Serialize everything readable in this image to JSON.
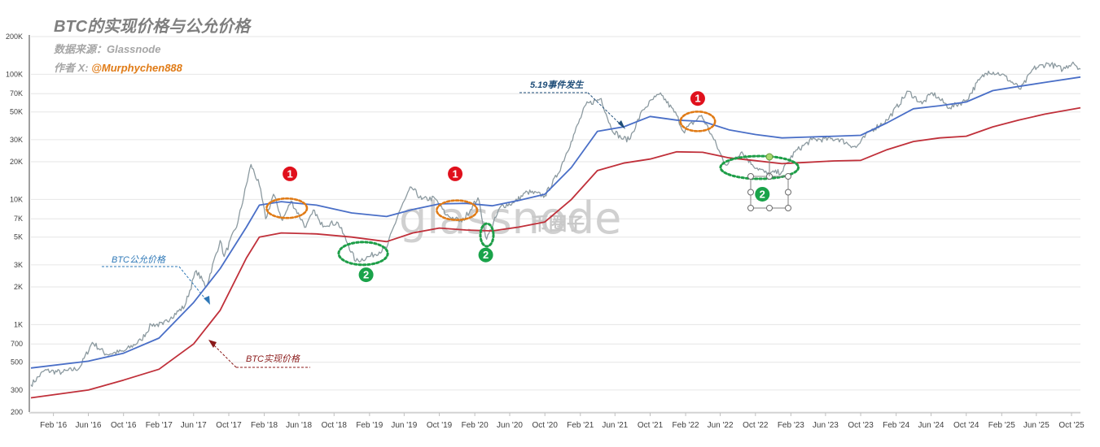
{
  "title": "BTC的实现价格与公允价格",
  "source_text": "数据来源：Glassnode",
  "author_label": "作者 X: ",
  "author_handle": "@Murphychen888",
  "watermark": "glassnode",
  "watermark2": "币圈子",
  "colors": {
    "price": "#8c9aa0",
    "fair": "#4a6fc7",
    "realized": "#c0303a",
    "orange_ring": "#e07b16",
    "green_ring": "#1e9e48",
    "marker_red": "#e0101c",
    "marker_green": "#1aa34a",
    "ann_blue": "#2e78b7",
    "ann_red": "#8b1a1a",
    "ann_navy": "#1f4e79"
  },
  "annotations": {
    "fair_label": "BTC公允价格",
    "realized_label": "BTC实现价格",
    "event_label": "5.19事件发生",
    "marker_1": "1",
    "marker_2": "2"
  },
  "chart_data": {
    "type": "line",
    "title": "BTC的实现价格与公允价格",
    "y_scale": "log",
    "ylim": [
      200,
      200000
    ],
    "y_ticks": [
      {
        "v": 200,
        "label": "200"
      },
      {
        "v": 300,
        "label": "300"
      },
      {
        "v": 500,
        "label": "500"
      },
      {
        "v": 700,
        "label": "700"
      },
      {
        "v": 1000,
        "label": "1K"
      },
      {
        "v": 2000,
        "label": "2K"
      },
      {
        "v": 3000,
        "label": "3K"
      },
      {
        "v": 5000,
        "label": "5K"
      },
      {
        "v": 7000,
        "label": "7K"
      },
      {
        "v": 10000,
        "label": "10K"
      },
      {
        "v": 20000,
        "label": "20K"
      },
      {
        "v": 30000,
        "label": "30K"
      },
      {
        "v": 50000,
        "label": "50K"
      },
      {
        "v": 70000,
        "label": "70K"
      },
      {
        "v": 100000,
        "label": "100K"
      },
      {
        "v": 200000,
        "label": "200K"
      }
    ],
    "xlim": [
      "2015-11-15",
      "2025-11-01"
    ],
    "x_ticks": [
      "Feb '16",
      "Jun '16",
      "Oct '16",
      "Feb '17",
      "Jun '17",
      "Oct '17",
      "Feb '18",
      "Jun '18",
      "Oct '18",
      "Feb '19",
      "Jun '19",
      "Oct '19",
      "Feb '20",
      "Jun '20",
      "Oct '20",
      "Feb '21",
      "Jun '21",
      "Oct '21",
      "Feb '22",
      "Jun '22",
      "Oct '22",
      "Feb '23",
      "Jun '23",
      "Oct '23",
      "Feb '24",
      "Jun '24",
      "Oct '24",
      "Feb '25",
      "Jun '25",
      "Oct '25"
    ],
    "grid": "horizontal",
    "series": [
      {
        "key": "price",
        "points": [
          [
            "2015-11-15",
            330
          ],
          [
            "2016-01-01",
            430
          ],
          [
            "2016-03-01",
            415
          ],
          [
            "2016-05-01",
            450
          ],
          [
            "2016-06-15",
            720
          ],
          [
            "2016-08-01",
            580
          ],
          [
            "2016-10-01",
            610
          ],
          [
            "2016-12-01",
            750
          ],
          [
            "2017-01-05",
            1000
          ],
          [
            "2017-02-15",
            1000
          ],
          [
            "2017-03-15",
            1150
          ],
          [
            "2017-05-01",
            1400
          ],
          [
            "2017-06-10",
            2700
          ],
          [
            "2017-07-15",
            2000
          ],
          [
            "2017-09-01",
            4700
          ],
          [
            "2017-09-15",
            3500
          ],
          [
            "2017-11-01",
            6500
          ],
          [
            "2017-12-17",
            19000
          ],
          [
            "2018-01-15",
            13000
          ],
          [
            "2018-02-06",
            7000
          ],
          [
            "2018-03-05",
            11000
          ],
          [
            "2018-04-05",
            6800
          ],
          [
            "2018-05-05",
            9700
          ],
          [
            "2018-06-25",
            6000
          ],
          [
            "2018-07-25",
            8200
          ],
          [
            "2018-08-15",
            6300
          ],
          [
            "2018-10-15",
            6500
          ],
          [
            "2018-11-20",
            4300
          ],
          [
            "2018-12-15",
            3200
          ],
          [
            "2019-02-01",
            3500
          ],
          [
            "2019-04-01",
            4100
          ],
          [
            "2019-05-15",
            8000
          ],
          [
            "2019-06-26",
            12500
          ],
          [
            "2019-08-01",
            10000
          ],
          [
            "2019-09-15",
            10200
          ],
          [
            "2019-10-25",
            7500
          ],
          [
            "2019-11-25",
            7000
          ],
          [
            "2019-12-18",
            6600
          ],
          [
            "2020-02-12",
            10300
          ],
          [
            "2020-03-13",
            4800
          ],
          [
            "2020-05-01",
            8800
          ],
          [
            "2020-06-15",
            9400
          ],
          [
            "2020-08-01",
            11500
          ],
          [
            "2020-10-01",
            10700
          ],
          [
            "2020-11-15",
            16000
          ],
          [
            "2020-12-31",
            29000
          ],
          [
            "2021-02-20",
            57000
          ],
          [
            "2021-04-14",
            64000
          ],
          [
            "2021-05-19",
            37000
          ],
          [
            "2021-06-22",
            31000
          ],
          [
            "2021-07-20",
            30000
          ],
          [
            "2021-09-06",
            52000
          ],
          [
            "2021-10-20",
            66000
          ],
          [
            "2021-11-10",
            68000
          ],
          [
            "2022-01-01",
            47000
          ],
          [
            "2022-01-24",
            35000
          ],
          [
            "2022-03-28",
            47000
          ],
          [
            "2022-05-10",
            30000
          ],
          [
            "2022-06-18",
            19000
          ],
          [
            "2022-08-15",
            24000
          ],
          [
            "2022-09-20",
            19000
          ],
          [
            "2022-11-10",
            16000
          ],
          [
            "2022-12-31",
            16600
          ],
          [
            "2023-02-15",
            24000
          ],
          [
            "2023-04-15",
            30000
          ],
          [
            "2023-07-15",
            30500
          ],
          [
            "2023-09-15",
            26000
          ],
          [
            "2023-11-01",
            35000
          ],
          [
            "2024-01-01",
            43000
          ],
          [
            "2024-03-14",
            73000
          ],
          [
            "2024-05-01",
            58000
          ],
          [
            "2024-06-05",
            71000
          ],
          [
            "2024-08-05",
            54000
          ],
          [
            "2024-10-01",
            62000
          ],
          [
            "2024-11-15",
            90000
          ],
          [
            "2024-12-17",
            106000
          ],
          [
            "2025-02-01",
            100000
          ],
          [
            "2025-04-08",
            76000
          ],
          [
            "2025-05-22",
            111000
          ],
          [
            "2025-07-14",
            122000
          ],
          [
            "2025-09-01",
            109000
          ],
          [
            "2025-10-06",
            125000
          ],
          [
            "2025-11-01",
            110000
          ]
        ]
      },
      {
        "key": "fair",
        "name": "BTC公允价格",
        "points": [
          [
            "2015-11-15",
            450
          ],
          [
            "2016-06-01",
            510
          ],
          [
            "2016-10-01",
            590
          ],
          [
            "2017-02-01",
            780
          ],
          [
            "2017-06-01",
            1500
          ],
          [
            "2017-09-01",
            2800
          ],
          [
            "2017-12-01",
            6000
          ],
          [
            "2018-01-15",
            9000
          ],
          [
            "2018-04-01",
            9600
          ],
          [
            "2018-08-01",
            9000
          ],
          [
            "2018-12-01",
            7800
          ],
          [
            "2019-04-01",
            7300
          ],
          [
            "2019-07-01",
            8300
          ],
          [
            "2019-10-01",
            9200
          ],
          [
            "2020-01-01",
            9300
          ],
          [
            "2020-04-01",
            8900
          ],
          [
            "2020-07-01",
            9800
          ],
          [
            "2020-10-01",
            11000
          ],
          [
            "2021-01-01",
            18000
          ],
          [
            "2021-04-01",
            35000
          ],
          [
            "2021-07-01",
            38000
          ],
          [
            "2021-10-01",
            46000
          ],
          [
            "2022-01-01",
            43000
          ],
          [
            "2022-04-01",
            42000
          ],
          [
            "2022-07-01",
            36000
          ],
          [
            "2022-10-01",
            33000
          ],
          [
            "2023-01-01",
            31000
          ],
          [
            "2023-04-01",
            31500
          ],
          [
            "2023-07-01",
            32000
          ],
          [
            "2023-10-01",
            32500
          ],
          [
            "2024-01-01",
            41000
          ],
          [
            "2024-04-01",
            53000
          ],
          [
            "2024-07-01",
            56000
          ],
          [
            "2024-10-01",
            60000
          ],
          [
            "2025-01-01",
            74000
          ],
          [
            "2025-04-01",
            80000
          ],
          [
            "2025-07-01",
            86000
          ],
          [
            "2025-11-01",
            95000
          ]
        ]
      },
      {
        "key": "realized",
        "name": "BTC实现价格",
        "points": [
          [
            "2015-11-15",
            260
          ],
          [
            "2016-06-01",
            300
          ],
          [
            "2016-10-01",
            360
          ],
          [
            "2017-02-01",
            440
          ],
          [
            "2017-06-01",
            700
          ],
          [
            "2017-09-01",
            1300
          ],
          [
            "2017-12-01",
            3400
          ],
          [
            "2018-01-15",
            5000
          ],
          [
            "2018-04-01",
            5400
          ],
          [
            "2018-08-01",
            5300
          ],
          [
            "2018-12-01",
            5000
          ],
          [
            "2019-04-01",
            4600
          ],
          [
            "2019-07-01",
            5400
          ],
          [
            "2019-10-01",
            5900
          ],
          [
            "2020-01-01",
            5700
          ],
          [
            "2020-04-01",
            5600
          ],
          [
            "2020-07-01",
            6000
          ],
          [
            "2020-10-01",
            6600
          ],
          [
            "2021-01-01",
            10000
          ],
          [
            "2021-04-01",
            17000
          ],
          [
            "2021-07-01",
            19500
          ],
          [
            "2021-10-01",
            21000
          ],
          [
            "2022-01-01",
            24000
          ],
          [
            "2022-04-01",
            23800
          ],
          [
            "2022-07-01",
            21500
          ],
          [
            "2022-10-01",
            20400
          ],
          [
            "2023-01-01",
            19300
          ],
          [
            "2023-04-01",
            19800
          ],
          [
            "2023-07-01",
            20300
          ],
          [
            "2023-10-01",
            20500
          ],
          [
            "2024-01-01",
            25000
          ],
          [
            "2024-04-01",
            29000
          ],
          [
            "2024-07-01",
            31000
          ],
          [
            "2024-10-01",
            32000
          ],
          [
            "2025-01-01",
            38000
          ],
          [
            "2025-04-01",
            43000
          ],
          [
            "2025-07-01",
            48000
          ],
          [
            "2025-11-01",
            54000
          ]
        ]
      }
    ],
    "circles": [
      {
        "type": "top",
        "date": "2018-04-20",
        "value": 8500,
        "rx_days": 70
      },
      {
        "type": "top",
        "date": "2019-12-01",
        "value": 8200,
        "rx_days": 70
      },
      {
        "type": "top",
        "date": "2022-03-15",
        "value": 42000,
        "rx_days": 60
      },
      {
        "type": "bottom",
        "date": "2019-01-10",
        "value": 3700,
        "rx_days": 85
      },
      {
        "type": "bottom",
        "date": "2020-03-14",
        "value": 5200,
        "rx_days": 12
      },
      {
        "type": "bottom",
        "date": "2022-10-15",
        "value": 18000,
        "rx_days": 135
      }
    ],
    "markers": [
      {
        "type": "top",
        "date": "2018-05-01",
        "value": 16000
      },
      {
        "type": "top",
        "date": "2019-11-25",
        "value": 16000
      },
      {
        "type": "top",
        "date": "2022-03-15",
        "value": 64000
      },
      {
        "type": "bottom",
        "date": "2019-01-20",
        "value": 2500
      },
      {
        "type": "bottom",
        "date": "2020-03-10",
        "value": 3600
      },
      {
        "type": "bottom",
        "date": "2022-10-25",
        "value": 11000
      }
    ]
  }
}
